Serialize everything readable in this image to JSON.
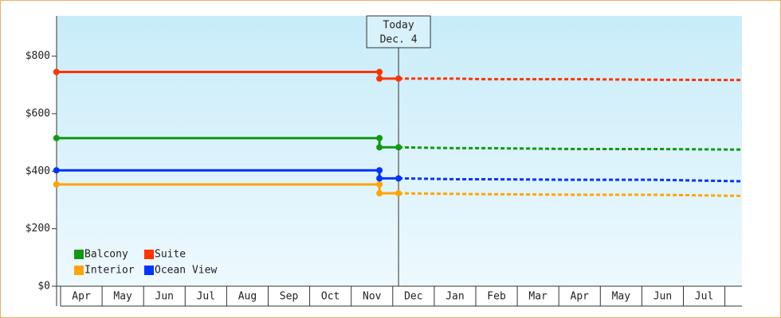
{
  "chart_data": {
    "type": "line",
    "categories": [
      "Apr",
      "May",
      "Jun",
      "Jul",
      "Aug",
      "Sep",
      "Oct",
      "Nov",
      "Dec",
      "Jan",
      "Feb",
      "Mar",
      "Apr",
      "May",
      "Jun",
      "Jul"
    ],
    "xlim": [
      -0.1,
      16.4
    ],
    "ylim": [
      0,
      940
    ],
    "yticks": [
      {
        "value": 0,
        "label": "$0"
      },
      {
        "value": 200,
        "label": "$200"
      },
      {
        "value": 400,
        "label": "$400"
      },
      {
        "value": 600,
        "label": "$600"
      },
      {
        "value": 800,
        "label": "$800"
      }
    ],
    "history_x": [
      -0.1,
      7.68,
      7.68,
      8.14
    ],
    "forecast_x": [
      8.14,
      9.5,
      10.2,
      12.4,
      14.3,
      16.4
    ],
    "today": {
      "x": 8.14,
      "label": [
        "Today",
        "Dec. 4"
      ]
    },
    "series": [
      {
        "name": "Balcony",
        "color": "#119911",
        "history": [
          515,
          515,
          483,
          483
        ],
        "forecast": [
          483,
          480,
          480,
          477,
          477,
          475
        ]
      },
      {
        "name": "Suite",
        "color": "#ff3300",
        "history": [
          745,
          745,
          722,
          722
        ],
        "forecast": [
          722,
          722,
          720,
          720,
          718,
          717
        ]
      },
      {
        "name": "Interior",
        "color": "#ffa500",
        "history": [
          354,
          354,
          323,
          323
        ],
        "forecast": [
          323,
          321,
          320,
          318,
          318,
          314
        ]
      },
      {
        "name": "Ocean View",
        "color": "#0033ff",
        "history": [
          403,
          403,
          375,
          375
        ],
        "forecast": [
          375,
          372,
          372,
          370,
          370,
          365
        ]
      }
    ]
  }
}
